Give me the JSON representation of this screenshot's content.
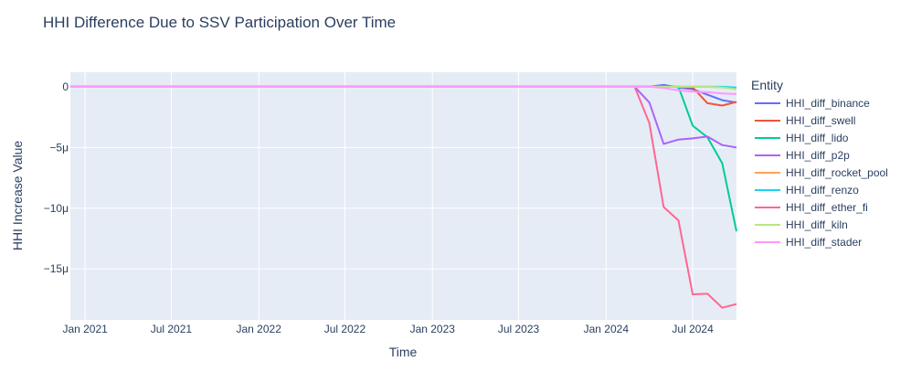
{
  "chart_data": {
    "type": "line",
    "title": "HHI Difference Due to SSV Participation Over Time",
    "xlabel": "Time",
    "ylabel": "HHI Increase Value",
    "x_ticks": [
      {
        "date": "2021-01-01",
        "label": "Jan 2021"
      },
      {
        "date": "2021-07-01",
        "label": "Jul 2021"
      },
      {
        "date": "2022-01-01",
        "label": "Jan 2022"
      },
      {
        "date": "2022-07-01",
        "label": "Jul 2022"
      },
      {
        "date": "2023-01-01",
        "label": "Jan 2023"
      },
      {
        "date": "2023-07-01",
        "label": "Jul 2023"
      },
      {
        "date": "2024-01-01",
        "label": "Jan 2024"
      },
      {
        "date": "2024-07-01",
        "label": "Jul 2024"
      }
    ],
    "y_ticks": [
      {
        "value": 0,
        "label": "0"
      },
      {
        "value": -5,
        "label": "−5μ"
      },
      {
        "value": -10,
        "label": "−10μ"
      },
      {
        "value": -15,
        "label": "−15μ"
      }
    ],
    "xlim": [
      "2020-12-01",
      "2024-10-01"
    ],
    "ylim": [
      -19.2,
      1.2
    ],
    "y_unit": "μ",
    "grid": true,
    "legend_position": "right",
    "legend_title": "Entity",
    "plot_background": "#e5ecf6",
    "x": [
      "2020-12-01",
      "2024-03-01",
      "2024-04-01",
      "2024-05-01",
      "2024-06-01",
      "2024-07-01",
      "2024-08-01",
      "2024-09-01",
      "2024-10-01"
    ],
    "series": [
      {
        "name": "HHI_diff_binance",
        "color": "#636efa",
        "values": [
          0,
          0,
          0,
          0.15,
          -0.05,
          -0.2,
          -0.65,
          -1.1,
          -1.3
        ]
      },
      {
        "name": "HHI_diff_swell",
        "color": "#ef553b",
        "values": [
          0,
          0,
          0,
          0,
          0,
          -0.05,
          -1.35,
          -1.55,
          -1.25
        ]
      },
      {
        "name": "HHI_diff_lido",
        "color": "#00cc96",
        "values": [
          0,
          0,
          0,
          0,
          0,
          -3.2,
          -4.15,
          -6.3,
          -11.9
        ]
      },
      {
        "name": "HHI_diff_p2p",
        "color": "#ab63fa",
        "values": [
          0,
          0,
          -1.3,
          -4.7,
          -4.35,
          -4.25,
          -4.1,
          -4.8,
          -5.0
        ]
      },
      {
        "name": "HHI_diff_rocket_pool",
        "color": "#ffa15a",
        "values": [
          0,
          0,
          0,
          0,
          0,
          0,
          0,
          -0.05,
          -0.1
        ]
      },
      {
        "name": "HHI_diff_renzo",
        "color": "#19d3f3",
        "values": [
          0,
          0,
          0,
          0,
          0,
          0,
          0,
          0,
          -0.05
        ]
      },
      {
        "name": "HHI_diff_ether_fi",
        "color": "#ff6692",
        "values": [
          0,
          0,
          -3.0,
          -9.9,
          -11.0,
          -17.1,
          -17.05,
          -18.2,
          -17.9
        ]
      },
      {
        "name": "HHI_diff_kiln",
        "color": "#b6e880",
        "values": [
          0,
          0,
          0,
          0,
          0,
          0,
          0,
          -0.05,
          -0.2
        ]
      },
      {
        "name": "HHI_diff_stader",
        "color": "#ff97ff",
        "values": [
          0,
          0,
          0,
          -0.1,
          -0.3,
          -0.4,
          -0.45,
          -0.55,
          -0.6
        ]
      }
    ]
  }
}
